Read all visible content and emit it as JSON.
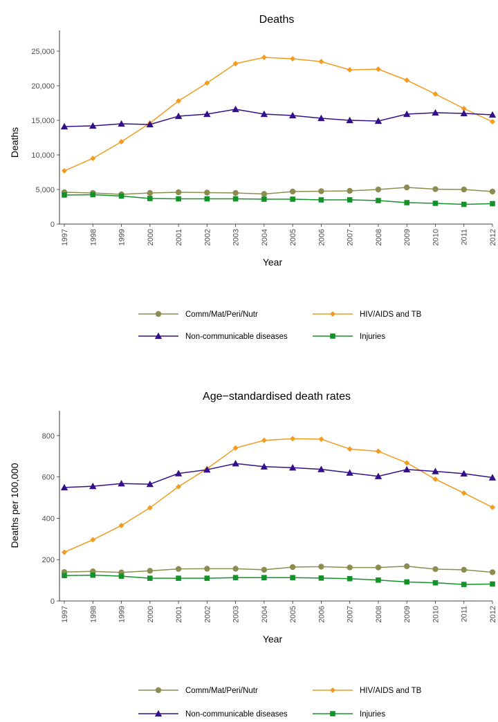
{
  "chart_data": [
    {
      "type": "line",
      "title": "Deaths",
      "xlabel": "Year",
      "ylabel": "Deaths",
      "ylim": [
        0,
        28000
      ],
      "yticks": [
        0,
        5000,
        10000,
        15000,
        20000,
        25000
      ],
      "ytick_labels": [
        "0",
        "5,000",
        "10,000",
        "15,000",
        "20,000",
        "25,000"
      ],
      "x": [
        "1997",
        "1998",
        "1999",
        "2000",
        "2001",
        "2002",
        "2003",
        "2004",
        "2005",
        "2006",
        "2007",
        "2008",
        "2009",
        "2010",
        "2011",
        "2012"
      ],
      "grid": false,
      "legend": "bottom",
      "series": [
        {
          "name": "Comm/Mat/Peri/Nutr",
          "color": "#8c8c50",
          "marker": "circle",
          "values": [
            4600,
            4500,
            4300,
            4500,
            4600,
            4550,
            4500,
            4350,
            4700,
            4750,
            4800,
            5000,
            5300,
            5050,
            5000,
            4700
          ]
        },
        {
          "name": "HIV/AIDS and TB",
          "color": "#f39b1f",
          "marker": "diamond",
          "values": [
            7700,
            9500,
            11900,
            14600,
            17800,
            20400,
            23200,
            24100,
            23900,
            23500,
            22300,
            22400,
            20800,
            18800,
            16700,
            14800
          ]
        },
        {
          "name": "Non-communicable diseases",
          "color": "#33108a",
          "marker": "triangle",
          "values": [
            14100,
            14200,
            14500,
            14400,
            15600,
            15900,
            16600,
            15900,
            15700,
            15300,
            15000,
            14900,
            15900,
            16100,
            16000,
            15800
          ]
        },
        {
          "name": "Injuries",
          "color": "#14922a",
          "marker": "square",
          "values": [
            4200,
            4250,
            4050,
            3700,
            3650,
            3650,
            3650,
            3600,
            3600,
            3500,
            3500,
            3400,
            3100,
            3000,
            2850,
            2950
          ]
        }
      ]
    },
    {
      "type": "line",
      "title": "Age−standardised death rates",
      "xlabel": "Year",
      "ylabel": "Deaths per 100,000",
      "ylim": [
        0,
        920
      ],
      "yticks": [
        0,
        200,
        400,
        600,
        800
      ],
      "ytick_labels": [
        "0",
        "200",
        "400",
        "600",
        "800"
      ],
      "x": [
        "1997",
        "1998",
        "1999",
        "2000",
        "2001",
        "2002",
        "2003",
        "2004",
        "2005",
        "2006",
        "2007",
        "2008",
        "2009",
        "2010",
        "2011",
        "2012"
      ],
      "grid": false,
      "legend": "bottom",
      "series": [
        {
          "name": "Comm/Mat/Peri/Nutr",
          "color": "#8c8c50",
          "marker": "circle",
          "values": [
            140,
            143,
            138,
            146,
            155,
            156,
            156,
            151,
            164,
            166,
            162,
            162,
            168,
            154,
            151,
            139
          ]
        },
        {
          "name": "HIV/AIDS and TB",
          "color": "#f39b1f",
          "marker": "diamond",
          "values": [
            236,
            296,
            365,
            451,
            553,
            640,
            740,
            777,
            785,
            783,
            735,
            724,
            668,
            589,
            522,
            453
          ]
        },
        {
          "name": "Non-communicable diseases",
          "color": "#33108a",
          "marker": "triangle",
          "values": [
            549,
            555,
            568,
            565,
            617,
            635,
            665,
            650,
            645,
            637,
            620,
            603,
            636,
            627,
            616,
            597
          ]
        },
        {
          "name": "Injuries",
          "color": "#14922a",
          "marker": "square",
          "values": [
            123,
            125,
            120,
            110,
            110,
            110,
            113,
            113,
            113,
            111,
            108,
            101,
            92,
            88,
            80,
            82
          ]
        }
      ]
    }
  ]
}
